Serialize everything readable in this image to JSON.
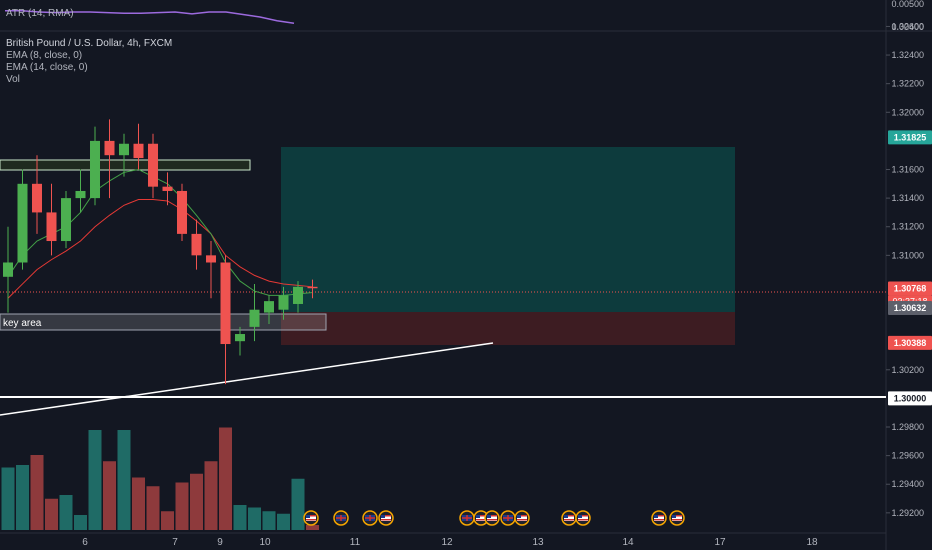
{
  "atr_pane": {
    "label": "ATR (14, RMA)",
    "ticks": [
      "0.00500",
      "0.00400"
    ],
    "line_color": "#9c6ade"
  },
  "main_pane": {
    "title": "British Pound / U.S. Dollar, 4h, FXCM",
    "indicators": [
      "EMA (8, close, 0)",
      "EMA (14, close, 0)",
      "Vol"
    ],
    "annotation_key_area": "key area",
    "price_ticks": [
      "1.32600",
      "1.32400",
      "1.32200",
      "1.32000",
      "1.31600",
      "1.31400",
      "1.31200",
      "1.31000",
      "1.30200",
      "1.29800",
      "1.29600",
      "1.29400",
      "1.29200"
    ],
    "price_labels": {
      "target": "1.31825",
      "last": "1.30768",
      "countdown": "03:37:18",
      "entry": "1.30632",
      "stop": "1.30388",
      "round": "1.30000"
    }
  },
  "time_axis": [
    "6",
    "7",
    "9",
    "10",
    "11",
    "12",
    "13",
    "14",
    "17",
    "18"
  ],
  "colors": {
    "up": "#26a69a",
    "up_candle": "#4caf50",
    "down": "#ef5350",
    "target_zone": "#0d3b3d",
    "stop_zone": "#3d1c22",
    "ema8": "#43a047",
    "ema14": "#e53935"
  },
  "event_markers": [
    "us-flag-icon",
    "uk-flag-icon",
    "uk-flag-icon",
    "us-flag-icon",
    "uk-flag-icon",
    "us-flag-icon",
    "us-flag-icon",
    "uk-flag-icon",
    "us-flag-icon",
    "us-flag-icon",
    "us-flag-icon",
    "us-flag-icon",
    "us-flag-icon"
  ],
  "chart_data": {
    "type": "candlestick",
    "title": "British Pound / U.S. Dollar, 4h, FXCM",
    "ylim": [
      1.2915,
      1.3268
    ],
    "candles": [
      {
        "o": 1.3085,
        "h": 1.312,
        "l": 1.306,
        "c": 1.3095
      },
      {
        "o": 1.3095,
        "h": 1.316,
        "l": 1.309,
        "c": 1.315
      },
      {
        "o": 1.315,
        "h": 1.317,
        "l": 1.3115,
        "c": 1.313
      },
      {
        "o": 1.313,
        "h": 1.315,
        "l": 1.31,
        "c": 1.311
      },
      {
        "o": 1.311,
        "h": 1.3145,
        "l": 1.3105,
        "c": 1.314
      },
      {
        "o": 1.314,
        "h": 1.316,
        "l": 1.313,
        "c": 1.3145
      },
      {
        "o": 1.314,
        "h": 1.319,
        "l": 1.3135,
        "c": 1.318
      },
      {
        "o": 1.318,
        "h": 1.3195,
        "l": 1.314,
        "c": 1.317
      },
      {
        "o": 1.317,
        "h": 1.3185,
        "l": 1.3155,
        "c": 1.3178
      },
      {
        "o": 1.3178,
        "h": 1.3192,
        "l": 1.316,
        "c": 1.3168
      },
      {
        "o": 1.3178,
        "h": 1.3185,
        "l": 1.314,
        "c": 1.3148
      },
      {
        "o": 1.3148,
        "h": 1.3158,
        "l": 1.3135,
        "c": 1.3145
      },
      {
        "o": 1.3145,
        "h": 1.315,
        "l": 1.311,
        "c": 1.3115
      },
      {
        "o": 1.3115,
        "h": 1.3125,
        "l": 1.309,
        "c": 1.31
      },
      {
        "o": 1.31,
        "h": 1.311,
        "l": 1.307,
        "c": 1.3095
      },
      {
        "o": 1.3095,
        "h": 1.31,
        "l": 1.301,
        "c": 1.3038
      },
      {
        "o": 1.304,
        "h": 1.305,
        "l": 1.303,
        "c": 1.3045
      },
      {
        "o": 1.305,
        "h": 1.308,
        "l": 1.304,
        "c": 1.3062
      },
      {
        "o": 1.306,
        "h": 1.3072,
        "l": 1.3052,
        "c": 1.3068
      },
      {
        "o": 1.3062,
        "h": 1.3078,
        "l": 1.3055,
        "c": 1.3072
      },
      {
        "o": 1.3066,
        "h": 1.3082,
        "l": 1.306,
        "c": 1.3078
      },
      {
        "o": 1.3078,
        "h": 1.3083,
        "l": 1.307,
        "c": 1.3077
      }
    ],
    "volumes": [
      0.5,
      0.52,
      0.6,
      0.25,
      0.28,
      0.12,
      0.8,
      0.55,
      0.8,
      0.42,
      0.35,
      0.15,
      0.38,
      0.45,
      0.55,
      0.82,
      0.2,
      0.18,
      0.15,
      0.13,
      0.41,
      0.04
    ],
    "ema8": [
      1.3085,
      1.31,
      1.311,
      1.3115,
      1.312,
      1.313,
      1.3145,
      1.3152,
      1.3158,
      1.316,
      1.3155,
      1.315,
      1.314,
      1.3128,
      1.3115,
      1.3095,
      1.3082,
      1.3075,
      1.3072,
      1.3072,
      1.3073,
      1.3074
    ],
    "ema14": [
      1.307,
      1.308,
      1.309,
      1.3097,
      1.3103,
      1.311,
      1.312,
      1.3128,
      1.3135,
      1.3139,
      1.3139,
      1.3138,
      1.3132,
      1.3124,
      1.3115,
      1.31,
      1.3092,
      1.3086,
      1.3082,
      1.308,
      1.3079,
      1.3078
    ],
    "atr": [
      0.0053,
      0.0053,
      0.0052,
      0.00515,
      0.0052,
      0.0052,
      0.00515,
      0.0051,
      0.0051,
      0.00515,
      0.0052,
      0.00505,
      0.0052,
      0.0052,
      0.005,
      0.0048,
      0.0045,
      0.0043
    ]
  }
}
